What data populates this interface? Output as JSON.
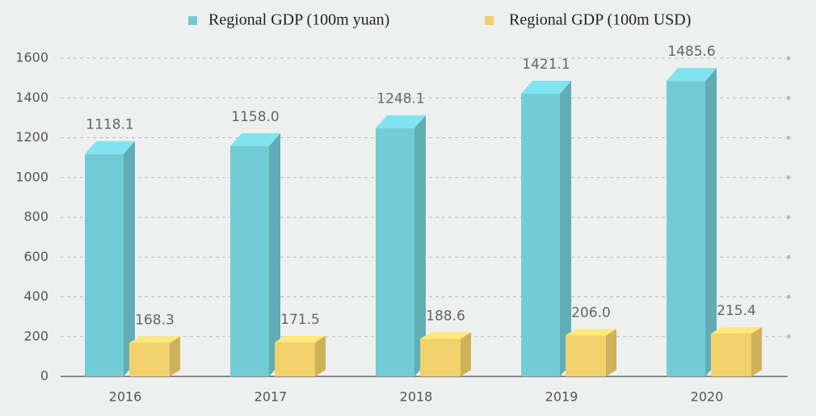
{
  "chart_data": {
    "type": "bar",
    "categories": [
      "2016",
      "2017",
      "2018",
      "2019",
      "2020"
    ],
    "series": [
      {
        "name": "Regional GDP (100m yuan)",
        "color": "#72ccd6",
        "values": [
          1118.1,
          1158.0,
          1248.1,
          1421.1,
          1485.6
        ],
        "value_labels": [
          "1118.1",
          "1158.0",
          "1248.1",
          "1421.1",
          "1485.6"
        ]
      },
      {
        "name": "Regional GDP (100m USD)",
        "color": "#f2d06b",
        "values": [
          168.3,
          171.5,
          188.6,
          206.0,
          215.4
        ],
        "value_labels": [
          "168.3",
          "171.5",
          "188.6",
          "206.0",
          "215.4"
        ]
      }
    ],
    "ylim": [
      0,
      1600
    ],
    "yticks": [
      0,
      200,
      400,
      600,
      800,
      1000,
      1200,
      1400,
      1600
    ],
    "grid": true,
    "legend": "top"
  }
}
